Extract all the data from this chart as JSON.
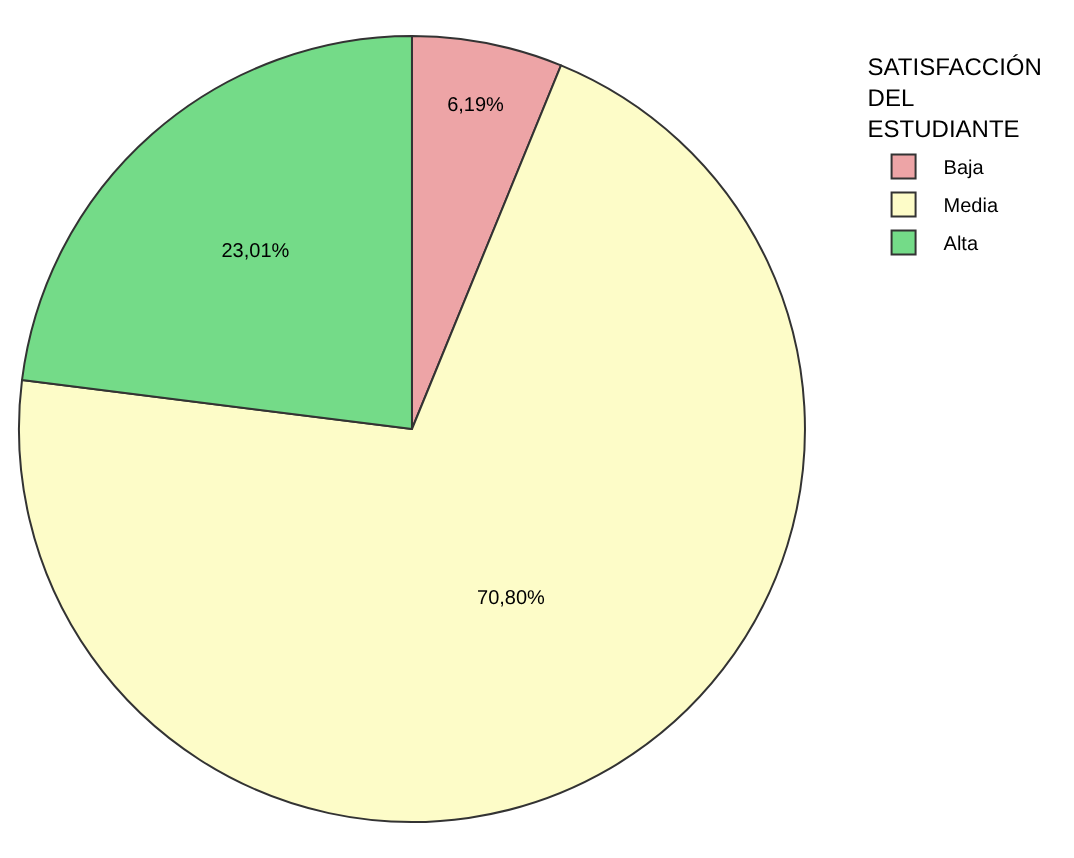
{
  "chart_data": {
    "type": "pie",
    "legend_title": "SATISFACCIÓN\nDEL\nESTUDIANTE",
    "categories": [
      "Baja",
      "Media",
      "Alta"
    ],
    "values": [
      6.19,
      70.8,
      23.01
    ],
    "colors": [
      "#eda4a6",
      "#fdfcc8",
      "#74db88"
    ],
    "value_labels": [
      "6,19%",
      "70,80%",
      "23,01%"
    ],
    "legend": "top right"
  }
}
